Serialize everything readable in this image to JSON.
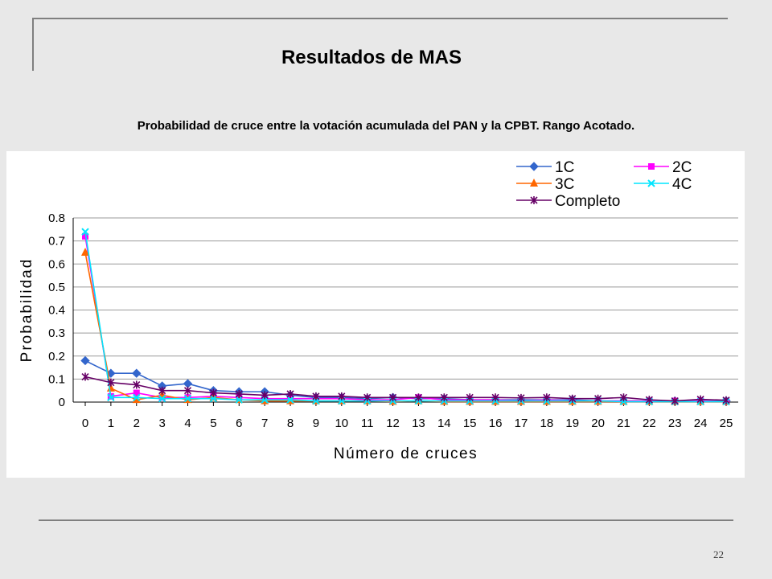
{
  "slide": {
    "title": "Resultados de MAS",
    "subtitle": "Probabilidad de cruce entre la votación acumulada del PAN y la CPBT. Rango Acotado.",
    "page_number": "22"
  },
  "chart_data": {
    "type": "line",
    "title": "",
    "xlabel": "Número de cruces",
    "ylabel": "Probabilidad",
    "ylim": [
      0,
      0.8
    ],
    "yticks": [
      0,
      0.1,
      0.2,
      0.3,
      0.4,
      0.5,
      0.6,
      0.7,
      0.8
    ],
    "categories": [
      "0",
      "1",
      "2",
      "3",
      "4",
      "5",
      "6",
      "7",
      "8",
      "9",
      "10",
      "11",
      "12",
      "13",
      "14",
      "15",
      "16",
      "17",
      "18",
      "19",
      "20",
      "21",
      "22",
      "23",
      "24",
      "25"
    ],
    "grid": "horizontal",
    "legend_position": "top-right",
    "series": [
      {
        "name": "1C",
        "color": "#3366cc",
        "marker": "diamond",
        "values": [
          0.18,
          0.125,
          0.125,
          0.07,
          0.08,
          0.05,
          0.045,
          0.045,
          0.03,
          0.02,
          0.02,
          0.015,
          0.02,
          0.015,
          0.015,
          0.01,
          0.01,
          0.01,
          0.01,
          0.01,
          0.005,
          0.005,
          0.005,
          0.005,
          0.005,
          0.005
        ]
      },
      {
        "name": "2C",
        "color": "#ff00ff",
        "marker": "square",
        "values": [
          0.72,
          0.025,
          0.04,
          0.02,
          0.02,
          0.025,
          0.02,
          0.015,
          0.015,
          0.015,
          0.015,
          0.01,
          0.01,
          0.02,
          0.01,
          0.01,
          0.01,
          0.005,
          0.01,
          0.005,
          0.005,
          0.005,
          0.005,
          0.005,
          0.005,
          0.002
        ]
      },
      {
        "name": "3C",
        "color": "#ff6600",
        "marker": "triangle",
        "values": [
          0.65,
          0.06,
          0.01,
          0.03,
          0.01,
          0.02,
          0.01,
          0.005,
          0.005,
          0.005,
          0.005,
          0.005,
          0.002,
          0.005,
          0.002,
          0.002,
          0.002,
          0.002,
          0.002,
          0.002,
          0.002,
          0.002,
          0.002,
          0.002,
          0.002,
          0.002
        ]
      },
      {
        "name": "4C",
        "color": "#00e5ff",
        "marker": "x",
        "values": [
          0.74,
          0.02,
          0.02,
          0.015,
          0.015,
          0.015,
          0.01,
          0.01,
          0.01,
          0.005,
          0.005,
          0.005,
          0.005,
          0.005,
          0.005,
          0.005,
          0.005,
          0.005,
          0.005,
          0.005,
          0.005,
          0.002,
          0.002,
          0.002,
          0.002,
          0.002
        ]
      },
      {
        "name": "Completo",
        "color": "#660066",
        "marker": "asterisk",
        "values": [
          0.11,
          0.085,
          0.075,
          0.05,
          0.05,
          0.04,
          0.035,
          0.03,
          0.035,
          0.025,
          0.025,
          0.02,
          0.02,
          0.02,
          0.02,
          0.02,
          0.02,
          0.018,
          0.02,
          0.015,
          0.015,
          0.02,
          0.01,
          0.005,
          0.012,
          0.008
        ]
      }
    ]
  }
}
